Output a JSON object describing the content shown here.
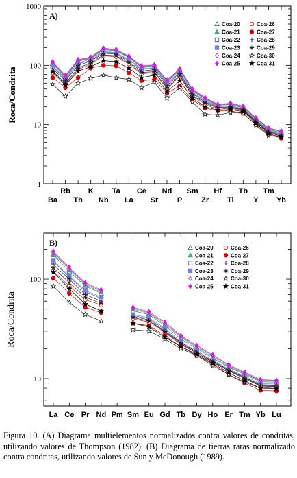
{
  "caption": "Figura 10. (A) Diagrama multielementos normalizados contra valores de condritas, utilizando valores de Thompson (1982). (B) Diagrama de tierras raras normalizado contra condritas, utilizando valores de Sun y McDonough (1989).",
  "series_styles": [
    {
      "name": "Coa-20",
      "marker": "triangle-open",
      "color": "#2e8b57"
    },
    {
      "name": "Coa-21",
      "marker": "triangle-filled",
      "color": "#3cb371"
    },
    {
      "name": "Coa-22",
      "marker": "square-open",
      "color": "#5050c0"
    },
    {
      "name": "Coa-23",
      "marker": "square-filled",
      "color": "#7a7ae6"
    },
    {
      "name": "Coa-24",
      "marker": "diamond-open",
      "color": "#b040c0"
    },
    {
      "name": "Coa-25",
      "marker": "diamond-filled",
      "color": "#d020d8"
    },
    {
      "name": "Coa-26",
      "marker": "circle-open",
      "color": "#cc2222"
    },
    {
      "name": "Coa-27",
      "marker": "circle-filled",
      "color": "#dd0000"
    },
    {
      "name": "Coa-28",
      "marker": "plus",
      "color": "#222222"
    },
    {
      "name": "Coa-29",
      "marker": "asterisk",
      "color": "#222222"
    },
    {
      "name": "Coa-30",
      "marker": "star-open",
      "color": "#222222"
    },
    {
      "name": "Coa-31",
      "marker": "star-filled",
      "color": "#000000"
    }
  ],
  "chart_data": [
    {
      "type": "line",
      "panel_label": "A)",
      "y_scale": "log",
      "ylim": [
        1,
        1000
      ],
      "yticks": [
        "1",
        "10",
        "100",
        "1000"
      ],
      "ylabel": "Roca/Condrita",
      "grid": false,
      "legend": "top-right",
      "categories": [
        "Ba",
        "Rb",
        "Th",
        "K",
        "Nb",
        "Ta",
        "La",
        "Ce",
        "Sr",
        "Nd",
        "P",
        "Sm",
        "Zr",
        "Hf",
        "Ti",
        "Tb",
        "Y",
        "Tm",
        "Yb"
      ],
      "series": [
        {
          "name": "Coa-20",
          "values": [
            108,
            62,
            118,
            130,
            185,
            175,
            135,
            92,
            96,
            52,
            83,
            37,
            27,
            21,
            22,
            19,
            12,
            8.2,
            7.2
          ]
        },
        {
          "name": "Coa-21",
          "values": [
            110,
            64,
            120,
            132,
            188,
            178,
            138,
            94,
            98,
            53,
            84,
            38,
            27.5,
            21,
            22,
            19.5,
            12.5,
            8.4,
            7.4
          ]
        },
        {
          "name": "Coa-22",
          "values": [
            95,
            58,
            105,
            122,
            168,
            160,
            122,
            85,
            90,
            48,
            75,
            34,
            25,
            20,
            21,
            18,
            11.5,
            7.8,
            6.8
          ]
        },
        {
          "name": "Coa-23",
          "values": [
            100,
            60,
            110,
            128,
            172,
            164,
            126,
            88,
            92,
            50,
            78,
            35,
            26,
            20.5,
            21,
            18.5,
            11.8,
            8.0,
            7.0
          ]
        },
        {
          "name": "Coa-24",
          "values": [
            112,
            66,
            122,
            135,
            192,
            182,
            140,
            96,
            100,
            55,
            86,
            39,
            28,
            21.5,
            22.5,
            20,
            12.8,
            8.6,
            7.6
          ]
        },
        {
          "name": "Coa-25",
          "values": [
            115,
            68,
            125,
            138,
            196,
            186,
            143,
            98,
            102,
            56,
            88,
            40,
            28.5,
            22,
            23,
            20.5,
            13,
            8.8,
            7.8
          ]
        },
        {
          "name": "Coa-26",
          "values": [
            75,
            48,
            85,
            105,
            145,
            140,
            105,
            72,
            75,
            40,
            65,
            30,
            22,
            18,
            19,
            17,
            11,
            7.3,
            6.3
          ]
        },
        {
          "name": "Coa-27",
          "values": [
            62,
            42,
            62,
            90,
            100,
            98,
            75,
            55,
            58,
            34,
            45,
            26,
            19,
            17,
            17,
            15.5,
            10,
            6.8,
            5.9
          ]
        },
        {
          "name": "Coa-28",
          "values": [
            88,
            55,
            100,
            118,
            160,
            155,
            115,
            80,
            85,
            45,
            72,
            33,
            24,
            19.5,
            20,
            18,
            11.3,
            7.6,
            6.6
          ]
        },
        {
          "name": "Coa-29",
          "values": [
            80,
            50,
            90,
            110,
            150,
            145,
            110,
            76,
            78,
            42,
            68,
            31,
            23,
            19,
            19.5,
            17.5,
            11,
            7.4,
            6.4
          ]
        },
        {
          "name": "Coa-30",
          "values": [
            48,
            30,
            50,
            60,
            68,
            62,
            58,
            42,
            52,
            28,
            42,
            24,
            15,
            14.5,
            16,
            15.5,
            9.8,
            6.5,
            6.1
          ]
        },
        {
          "name": "Coa-31",
          "values": [
            78,
            46,
            80,
            95,
            120,
            115,
            90,
            62,
            68,
            36,
            55,
            28,
            20,
            17.5,
            18,
            16.5,
            10.5,
            7.0,
            6.1
          ]
        }
      ]
    },
    {
      "type": "line",
      "panel_label": "B)",
      "y_scale": "log",
      "ylim": [
        5.3,
        290
      ],
      "yticks": [
        "10",
        "100"
      ],
      "ylabel": "Roca/Condrita",
      "grid": false,
      "legend": "top-right",
      "categories": [
        "La",
        "Ce",
        "Pr",
        "Nd",
        "Pm",
        "Sm",
        "Eu",
        "Gd",
        "Tb",
        "Dy",
        "Ho",
        "Er",
        "Tm",
        "Yb",
        "Lu"
      ],
      "series": [
        {
          "name": "Coa-20",
          "values": [
            175,
            120,
            85,
            72,
            null,
            48,
            44,
            34,
            25,
            20,
            16,
            13,
            11,
            9.3,
            9.2
          ]
        },
        {
          "name": "Coa-21",
          "values": [
            180,
            125,
            88,
            74,
            null,
            50,
            45,
            35,
            26,
            20.5,
            16.5,
            13.2,
            11.2,
            9.5,
            9.4
          ]
        },
        {
          "name": "Coa-22",
          "values": [
            150,
            105,
            75,
            64,
            null,
            43,
            40,
            31,
            23,
            18.5,
            15,
            12.3,
            10.3,
            8.7,
            8.6
          ]
        },
        {
          "name": "Coa-23",
          "values": [
            155,
            108,
            77,
            66,
            null,
            44,
            41,
            32,
            23.5,
            19,
            15.3,
            12.5,
            10.5,
            8.9,
            8.8
          ]
        },
        {
          "name": "Coa-24",
          "values": [
            185,
            128,
            90,
            76,
            null,
            51,
            46,
            36,
            26.5,
            21,
            17,
            13.5,
            11.4,
            9.6,
            9.5
          ]
        },
        {
          "name": "Coa-25",
          "values": [
            190,
            132,
            92,
            78,
            null,
            52,
            47,
            37,
            27,
            21.5,
            17.3,
            13.8,
            11.6,
            9.8,
            9.6
          ]
        },
        {
          "name": "Coa-26",
          "values": [
            120,
            85,
            62,
            55,
            null,
            40,
            37,
            29,
            22,
            18,
            14.5,
            12,
            10,
            8.5,
            8.4
          ]
        },
        {
          "name": "Coa-27",
          "values": [
            102,
            72,
            52,
            46,
            null,
            36,
            34,
            27,
            21,
            17,
            14,
            11,
            9,
            7.6,
            7.5
          ]
        },
        {
          "name": "Coa-28",
          "values": [
            140,
            100,
            70,
            60,
            null,
            42,
            39,
            30,
            23,
            18.5,
            15,
            12.2,
            10.2,
            8.6,
            8.5
          ]
        },
        {
          "name": "Coa-29",
          "values": [
            130,
            92,
            66,
            57,
            null,
            41,
            38,
            29.5,
            22.5,
            18,
            14.7,
            12,
            10,
            8.4,
            8.3
          ]
        },
        {
          "name": "Coa-30",
          "values": [
            85,
            58,
            44,
            38,
            null,
            31,
            30,
            25,
            20,
            17,
            13.5,
            11,
            9.2,
            8.0,
            8.2
          ]
        },
        {
          "name": "Coa-31",
          "values": [
            118,
            80,
            56,
            48,
            null,
            36,
            33,
            26,
            21,
            17.5,
            14.2,
            11.5,
            9.5,
            8.0,
            7.9
          ]
        }
      ]
    }
  ]
}
